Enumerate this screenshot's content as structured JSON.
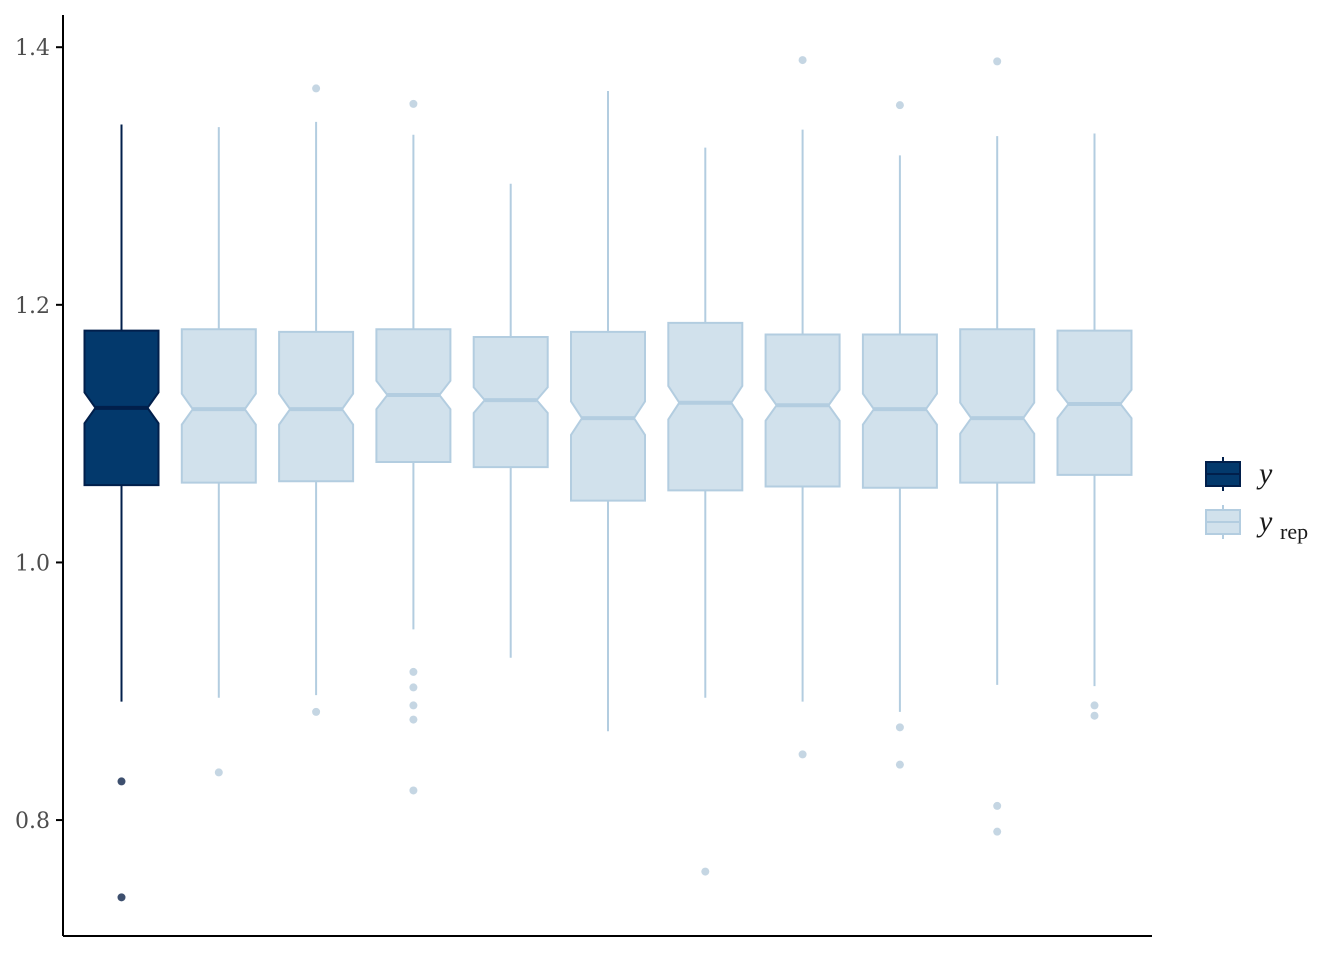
{
  "chart_data": {
    "type": "boxplot",
    "title": "",
    "xlabel": "",
    "ylabel": "",
    "ylim": [
      0.71,
      1.425
    ],
    "yticks": [
      0.8,
      1.0,
      1.2,
      1.4
    ],
    "ytick_labels": [
      "0.8",
      "1.0",
      "1.2",
      "1.4"
    ],
    "grid": false,
    "notched": true,
    "legend": {
      "position": "right",
      "entries": [
        {
          "key": "y",
          "label": "y",
          "sub": "",
          "fill": "#03396c",
          "stroke": "#011f4b"
        },
        {
          "key": "yrep",
          "label": "y",
          "sub": "rep",
          "fill": "#d1e1ec",
          "stroke": "#b3cde0"
        }
      ]
    },
    "colors": {
      "y_fill": "#03396c",
      "y_line": "#011f4b",
      "y_outlier": "#3d4f6e",
      "yrep_fill": "#d1e1ec",
      "yrep_line": "#b3cde0",
      "yrep_outlier": "#c5d6e3",
      "axis": "#000000"
    },
    "boxes": [
      {
        "series": "y",
        "q1": 1.06,
        "median": 1.12,
        "q3": 1.18,
        "notch_low": 1.108,
        "notch_high": 1.132,
        "whisker_low": 0.892,
        "whisker_high": 1.34,
        "outliers": [
          0.83,
          0.74
        ]
      },
      {
        "series": "yrep",
        "q1": 1.062,
        "median": 1.119,
        "q3": 1.181,
        "notch_low": 1.107,
        "notch_high": 1.131,
        "whisker_low": 0.895,
        "whisker_high": 1.338,
        "outliers": [
          0.837
        ]
      },
      {
        "series": "yrep",
        "q1": 1.063,
        "median": 1.119,
        "q3": 1.179,
        "notch_low": 1.107,
        "notch_high": 1.131,
        "whisker_low": 0.897,
        "whisker_high": 1.342,
        "outliers": [
          1.368,
          0.884
        ]
      },
      {
        "series": "yrep",
        "q1": 1.078,
        "median": 1.13,
        "q3": 1.181,
        "notch_low": 1.119,
        "notch_high": 1.141,
        "whisker_low": 0.948,
        "whisker_high": 1.332,
        "outliers": [
          1.356,
          0.915,
          0.903,
          0.889,
          0.878,
          0.823
        ]
      },
      {
        "series": "yrep",
        "q1": 1.074,
        "median": 1.126,
        "q3": 1.175,
        "notch_low": 1.116,
        "notch_high": 1.136,
        "whisker_low": 0.926,
        "whisker_high": 1.294,
        "outliers": []
      },
      {
        "series": "yrep",
        "q1": 1.048,
        "median": 1.112,
        "q3": 1.179,
        "notch_low": 1.099,
        "notch_high": 1.125,
        "whisker_low": 0.869,
        "whisker_high": 1.366,
        "outliers": []
      },
      {
        "series": "yrep",
        "q1": 1.056,
        "median": 1.124,
        "q3": 1.186,
        "notch_low": 1.111,
        "notch_high": 1.137,
        "whisker_low": 0.895,
        "whisker_high": 1.322,
        "outliers": [
          0.76
        ]
      },
      {
        "series": "yrep",
        "q1": 1.059,
        "median": 1.122,
        "q3": 1.177,
        "notch_low": 1.11,
        "notch_high": 1.134,
        "whisker_low": 0.892,
        "whisker_high": 1.336,
        "outliers": [
          1.39,
          0.851
        ]
      },
      {
        "series": "yrep",
        "q1": 1.058,
        "median": 1.119,
        "q3": 1.177,
        "notch_low": 1.107,
        "notch_high": 1.131,
        "whisker_low": 0.884,
        "whisker_high": 1.316,
        "outliers": [
          1.355,
          0.872,
          0.843
        ]
      },
      {
        "series": "yrep",
        "q1": 1.062,
        "median": 1.112,
        "q3": 1.181,
        "notch_low": 1.1,
        "notch_high": 1.124,
        "whisker_low": 0.905,
        "whisker_high": 1.331,
        "outliers": [
          1.389,
          0.811,
          0.791
        ]
      },
      {
        "series": "yrep",
        "q1": 1.068,
        "median": 1.123,
        "q3": 1.18,
        "notch_low": 1.112,
        "notch_high": 1.134,
        "whisker_low": 0.904,
        "whisker_high": 1.333,
        "outliers": [
          0.889,
          0.881
        ]
      }
    ]
  }
}
